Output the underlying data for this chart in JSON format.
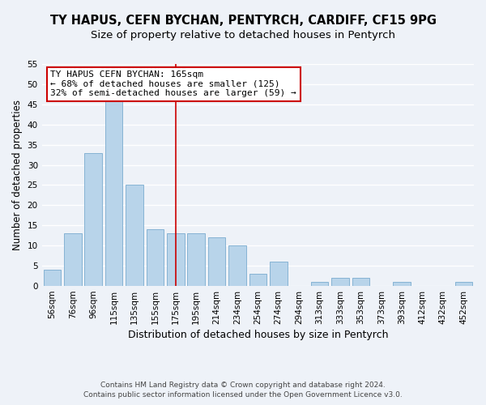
{
  "title": "TY HAPUS, CEFN BYCHAN, PENTYRCH, CARDIFF, CF15 9PG",
  "subtitle": "Size of property relative to detached houses in Pentyrch",
  "xlabel": "Distribution of detached houses by size in Pentyrch",
  "ylabel": "Number of detached properties",
  "bar_labels": [
    "56sqm",
    "76sqm",
    "96sqm",
    "115sqm",
    "135sqm",
    "155sqm",
    "175sqm",
    "195sqm",
    "214sqm",
    "234sqm",
    "254sqm",
    "274sqm",
    "294sqm",
    "313sqm",
    "333sqm",
    "353sqm",
    "373sqm",
    "393sqm",
    "412sqm",
    "432sqm",
    "452sqm"
  ],
  "bar_values": [
    4,
    13,
    33,
    46,
    25,
    14,
    13,
    13,
    12,
    10,
    3,
    6,
    0,
    1,
    2,
    2,
    0,
    1,
    0,
    0,
    1
  ],
  "bar_color": "#b8d4ea",
  "bar_edge_color": "#7aaccf",
  "ylim": [
    0,
    55
  ],
  "yticks": [
    0,
    5,
    10,
    15,
    20,
    25,
    30,
    35,
    40,
    45,
    50,
    55
  ],
  "vline_color": "#cc0000",
  "annotation_title": "TY HAPUS CEFN BYCHAN: 165sqm",
  "annotation_line1": "← 68% of detached houses are smaller (125)",
  "annotation_line2": "32% of semi-detached houses are larger (59) →",
  "annotation_box_color": "#ffffff",
  "annotation_box_edge": "#cc0000",
  "footer1": "Contains HM Land Registry data © Crown copyright and database right 2024.",
  "footer2": "Contains public sector information licensed under the Open Government Licence v3.0.",
  "background_color": "#eef2f8",
  "plot_bg_color": "#eef2f8",
  "grid_color": "#ffffff",
  "title_fontsize": 10.5,
  "subtitle_fontsize": 9.5,
  "tick_fontsize": 7.5,
  "ylabel_fontsize": 8.5,
  "xlabel_fontsize": 9,
  "footer_fontsize": 6.5
}
